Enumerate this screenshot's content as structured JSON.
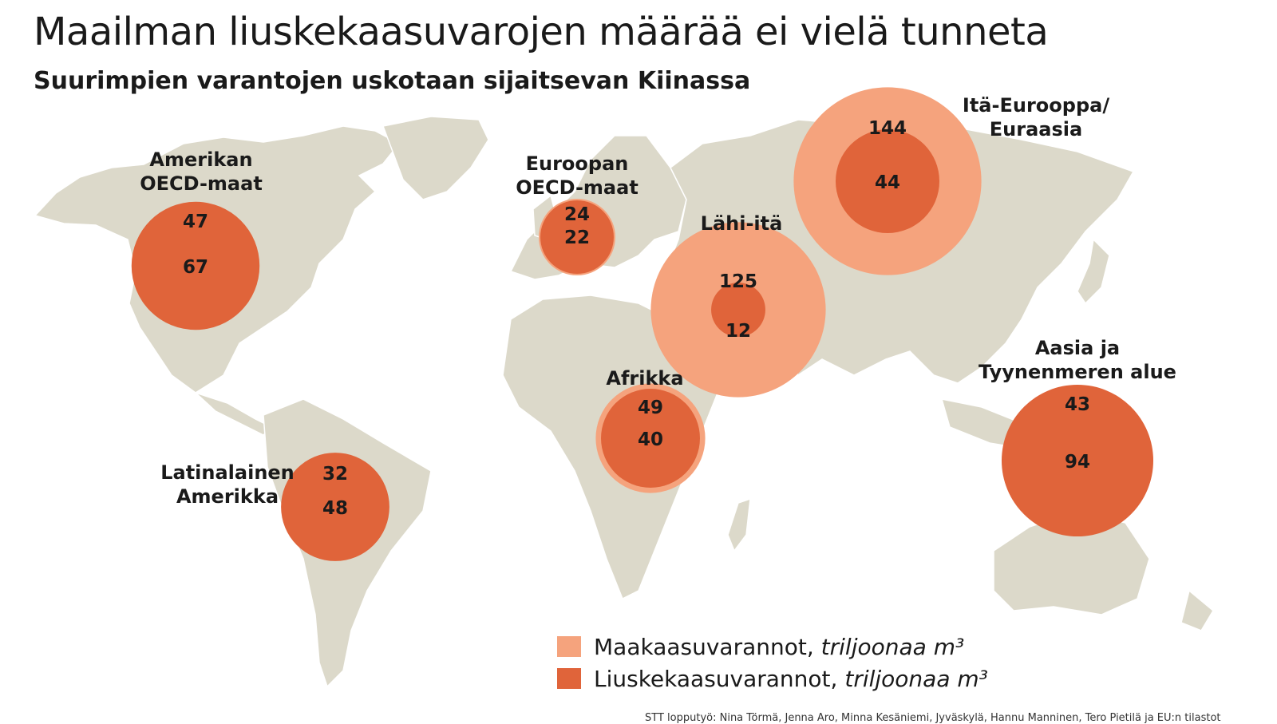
{
  "title": "Maailman liuskekaasuvarojen määrää ei vielä tunneta",
  "subtitle": "Suurimpien varantojen uskotaan sijaitsevan Kiinassa",
  "colors": {
    "land": "#dcd9ca",
    "natural_gas": "#f5a37d",
    "shale_gas": "#e0643a"
  },
  "regions": [
    {
      "id": "amerikan-oecd",
      "label_lines": [
        "Amerikan",
        "OECD-maat"
      ],
      "natural_gas": 47,
      "shale_gas": 67
    },
    {
      "id": "euroopan-oecd",
      "label_lines": [
        "Euroopan",
        "OECD-maat"
      ],
      "natural_gas": 24,
      "shale_gas": 22
    },
    {
      "id": "ita-eurooppa",
      "label_lines": [
        "Itä-Eurooppa/",
        "Euraasia"
      ],
      "natural_gas": 144,
      "shale_gas": 44
    },
    {
      "id": "lahi-ita",
      "label_lines": [
        "Lähi-itä"
      ],
      "natural_gas": 125,
      "shale_gas": 12
    },
    {
      "id": "afrikka",
      "label_lines": [
        "Afrikka"
      ],
      "natural_gas": 49,
      "shale_gas": 40
    },
    {
      "id": "latinalainen-amerikka",
      "label_lines": [
        "Latinalainen",
        "Amerikka"
      ],
      "natural_gas": 32,
      "shale_gas": 48
    },
    {
      "id": "aasia-tyynenmeren",
      "label_lines": [
        "Aasia ja",
        "Tyynenmeren alue"
      ],
      "natural_gas": 43,
      "shale_gas": 94
    }
  ],
  "legend": {
    "natural_gas_label": "Maakaasuvarannot,",
    "shale_gas_label": "Liuskekaasuvarannot,",
    "unit": "triljoonaa m³"
  },
  "source": "STT lopputyö: Nina Törmä, Jenna Aro, Minna Kesäniemi, Jyväskylä, Hannu Manninen, Tero Pietilä ja EU:n tilastot"
}
